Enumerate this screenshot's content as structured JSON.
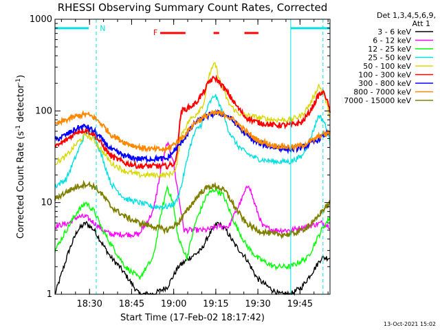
{
  "chart_data": {
    "type": "line",
    "title": "RHESSI Observing Summary Count Rates, Corrected",
    "xlabel": "Start Time (17-Feb-02 18:17:42)",
    "ylabel": "Corrected Count Rate (s",
    "ylabel_sup1": "-1",
    "ylabel_mid": " detector",
    "ylabel_sup2": "-1",
    "ylabel_end": ")",
    "yscale": "log",
    "ylim": [
      1,
      1000
    ],
    "xlim_minutes": [
      0,
      98
    ],
    "x_ticks": [
      {
        "label": "18:30",
        "minute": 12.3
      },
      {
        "label": "18:45",
        "minute": 27.3
      },
      {
        "label": "19:00",
        "minute": 42.3
      },
      {
        "label": "19:15",
        "minute": 57.3
      },
      {
        "label": "19:30",
        "minute": 72.3
      },
      {
        "label": "19:45",
        "minute": 87.3
      }
    ],
    "y_ticks": [
      {
        "label": "1",
        "value": 1
      },
      {
        "label": "10",
        "value": 10
      },
      {
        "label": "100",
        "value": 100
      },
      {
        "label": "1000",
        "value": 1000
      }
    ],
    "legend": {
      "header1": "Det 1,3,4,5,6,9,",
      "header2": "Att 1",
      "placement": "right"
    },
    "flags": [
      {
        "label": "N",
        "color": "#00e0e0"
      },
      {
        "label": "F",
        "color": "#ff0000"
      }
    ],
    "series": [
      {
        "name": "3 - 6 keV",
        "color": "#000000",
        "x": [
          0,
          5,
          8,
          11,
          14,
          17,
          20,
          23,
          26,
          30,
          35,
          40,
          44,
          48,
          52,
          55,
          58,
          61,
          64,
          68,
          72,
          76,
          80,
          84,
          88,
          92,
          95,
          98
        ],
        "y": [
          1,
          3,
          5,
          6,
          5,
          3.5,
          2.5,
          2,
          1.5,
          1,
          1,
          1.2,
          2,
          2.5,
          3,
          4.5,
          6,
          5,
          3.5,
          2.5,
          1.5,
          1.2,
          1,
          1,
          1.2,
          1.8,
          2.5,
          2.5
        ]
      },
      {
        "name": "6 - 12 keV",
        "color": "#ff00ff",
        "x": [
          0,
          5,
          8,
          11,
          14,
          17,
          20,
          25,
          30,
          35,
          38,
          40,
          42,
          44,
          46,
          50,
          54,
          58,
          62,
          66,
          69,
          71,
          74,
          78,
          84,
          90,
          95,
          98
        ],
        "y": [
          5.5,
          6,
          7,
          7,
          6,
          5,
          4.5,
          4.5,
          4.5,
          8,
          25,
          45,
          30,
          12,
          5,
          5,
          5,
          5.5,
          5.5,
          10,
          16,
          10,
          5.5,
          5,
          5,
          5.5,
          6,
          5.5
        ]
      },
      {
        "name": "12 - 25 keV",
        "color": "#00ff00",
        "x": [
          0,
          4,
          8,
          11,
          14,
          17,
          20,
          25,
          30,
          35,
          38,
          40,
          42,
          44,
          47,
          50,
          54,
          57,
          60,
          64,
          68,
          72,
          78,
          84,
          90,
          95,
          98
        ],
        "y": [
          3,
          5,
          8,
          10,
          8,
          5,
          3.5,
          2,
          1.5,
          2.5,
          8,
          15,
          10,
          4,
          2.5,
          6,
          12,
          14,
          12,
          6,
          3.5,
          2.5,
          2,
          2,
          2.5,
          5,
          7
        ]
      },
      {
        "name": "25 - 50 keV",
        "color": "#00e0e0",
        "x": [
          0,
          4,
          8,
          11,
          14,
          17,
          20,
          25,
          30,
          35,
          40,
          43,
          45,
          48,
          50,
          52,
          55,
          57,
          59,
          62,
          65,
          68,
          72,
          78,
          84,
          88,
          91,
          94,
          96,
          98
        ],
        "y": [
          15,
          18,
          35,
          60,
          55,
          30,
          16,
          11,
          10,
          9,
          9,
          10,
          15,
          40,
          60,
          70,
          120,
          150,
          110,
          60,
          42,
          35,
          30,
          28,
          28,
          32,
          50,
          90,
          75,
          45
        ]
      },
      {
        "name": "50 - 100 keV",
        "color": "#d8d800",
        "x": [
          0,
          4,
          8,
          11,
          14,
          17,
          20,
          25,
          30,
          35,
          40,
          43,
          45,
          48,
          50,
          53,
          55,
          57,
          59,
          62,
          65,
          68,
          72,
          78,
          84,
          88,
          91,
          94,
          96,
          98
        ],
        "y": [
          27,
          32,
          45,
          55,
          48,
          36,
          27,
          22,
          20,
          20,
          20,
          22,
          55,
          80,
          90,
          120,
          250,
          330,
          200,
          120,
          95,
          90,
          85,
          80,
          80,
          90,
          120,
          190,
          150,
          85
        ]
      },
      {
        "name": "100 - 300 keV",
        "color": "#ff0000",
        "x": [
          0,
          4,
          8,
          11,
          14,
          17,
          20,
          25,
          30,
          35,
          40,
          43,
          45,
          48,
          50,
          53,
          55,
          57,
          59,
          62,
          65,
          68,
          72,
          78,
          84,
          88,
          91,
          94,
          96,
          98
        ],
        "y": [
          40,
          48,
          60,
          62,
          55,
          42,
          32,
          27,
          25,
          25,
          25,
          27,
          100,
          110,
          120,
          160,
          210,
          230,
          200,
          150,
          110,
          85,
          75,
          70,
          70,
          75,
          100,
          150,
          160,
          100
        ]
      },
      {
        "name": "300 - 800 keV",
        "color": "#0000ff",
        "x": [
          0,
          4,
          8,
          11,
          14,
          17,
          20,
          25,
          30,
          35,
          40,
          45,
          50,
          55,
          58,
          61,
          64,
          68,
          72,
          78,
          84,
          88,
          92,
          95,
          98
        ],
        "y": [
          48,
          55,
          65,
          68,
          60,
          48,
          38,
          32,
          30,
          30,
          30,
          45,
          75,
          90,
          95,
          90,
          75,
          55,
          45,
          40,
          38,
          40,
          45,
          52,
          60
        ]
      },
      {
        "name": "800 - 7000 keV",
        "color": "#ff8800",
        "x": [
          0,
          4,
          8,
          11,
          14,
          17,
          20,
          25,
          30,
          35,
          40,
          45,
          50,
          55,
          58,
          61,
          64,
          68,
          72,
          78,
          84,
          88,
          92,
          95,
          98
        ],
        "y": [
          70,
          80,
          88,
          92,
          85,
          70,
          55,
          45,
          40,
          38,
          38,
          50,
          75,
          92,
          95,
          90,
          78,
          60,
          48,
          42,
          40,
          42,
          48,
          55,
          58
        ]
      },
      {
        "name": "7000 - 15000 keV",
        "color": "#808000",
        "x": [
          0,
          4,
          8,
          11,
          14,
          17,
          20,
          25,
          30,
          35,
          40,
          44,
          48,
          52,
          55,
          58,
          61,
          64,
          68,
          72,
          78,
          84,
          88,
          92,
          95,
          98
        ],
        "y": [
          11,
          13,
          15,
          16,
          15,
          12,
          9,
          7,
          6,
          5.5,
          5,
          6,
          9,
          13,
          15,
          15,
          13,
          9,
          6,
          5,
          4.5,
          4.5,
          5,
          6,
          8,
          10
        ]
      }
    ]
  },
  "footer": {
    "timestamp": "13-Oct-2021 15:02"
  }
}
